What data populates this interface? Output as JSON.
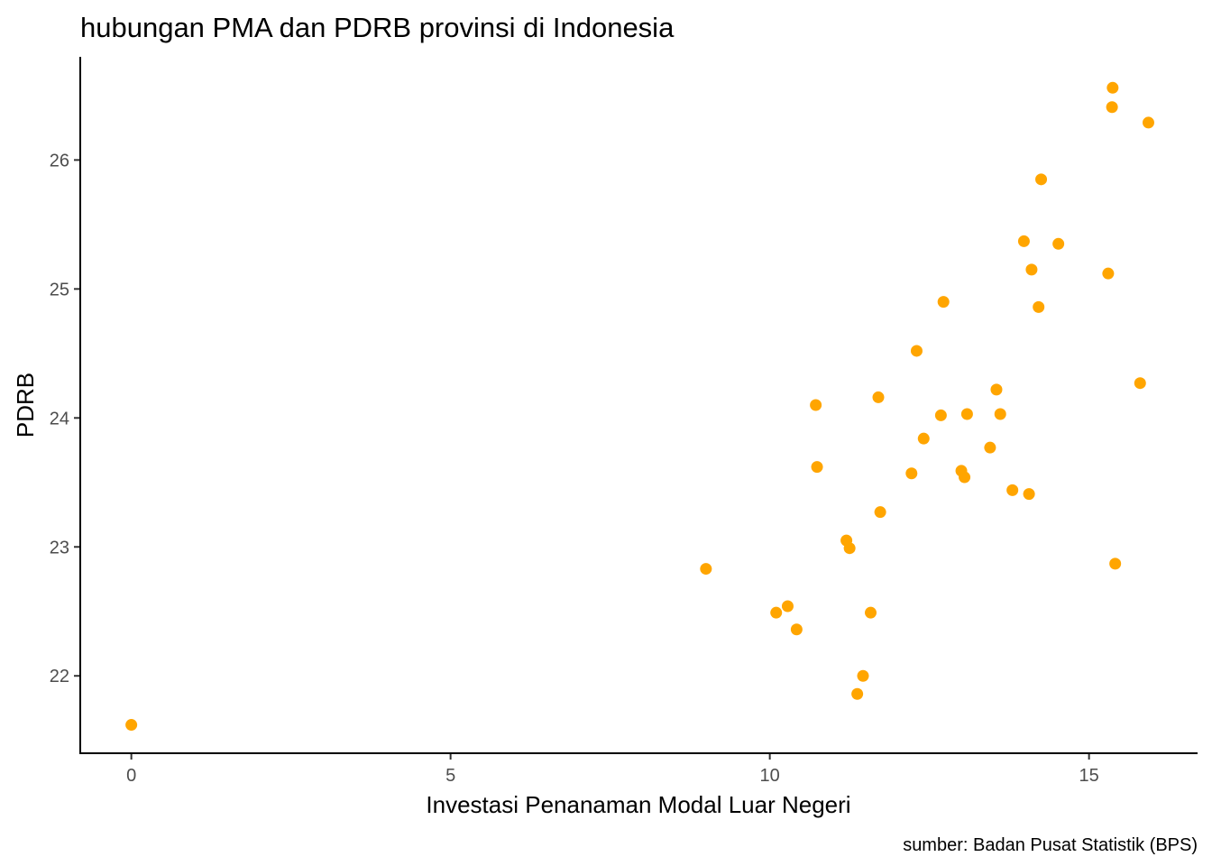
{
  "chart_data": {
    "type": "scatter",
    "title": "hubungan PMA dan PDRB provinsi di Indonesia",
    "xlabel": "Investasi Penanaman Modal Luar Negeri",
    "ylabel": "PDRB",
    "caption": "sumber: Badan Pusat Statistik (BPS)",
    "xlim": [
      -0.8,
      16.7
    ],
    "ylim": [
      21.4,
      26.8
    ],
    "xticks": [
      0,
      5,
      10,
      15
    ],
    "yticks": [
      22,
      23,
      24,
      25,
      26
    ],
    "grid": false,
    "point_color": "#FFA500",
    "points": [
      {
        "x": 0.0,
        "y": 21.62
      },
      {
        "x": 9.0,
        "y": 22.83
      },
      {
        "x": 10.1,
        "y": 22.49
      },
      {
        "x": 10.28,
        "y": 22.54
      },
      {
        "x": 10.42,
        "y": 22.36
      },
      {
        "x": 10.72,
        "y": 24.1
      },
      {
        "x": 10.74,
        "y": 23.62
      },
      {
        "x": 11.2,
        "y": 23.05
      },
      {
        "x": 11.25,
        "y": 22.99
      },
      {
        "x": 11.37,
        "y": 21.86
      },
      {
        "x": 11.46,
        "y": 22.0
      },
      {
        "x": 11.58,
        "y": 22.49
      },
      {
        "x": 11.7,
        "y": 24.16
      },
      {
        "x": 11.73,
        "y": 23.27
      },
      {
        "x": 12.22,
        "y": 23.57
      },
      {
        "x": 12.3,
        "y": 24.52
      },
      {
        "x": 12.41,
        "y": 23.84
      },
      {
        "x": 12.68,
        "y": 24.02
      },
      {
        "x": 12.72,
        "y": 24.9
      },
      {
        "x": 13.0,
        "y": 23.59
      },
      {
        "x": 13.05,
        "y": 23.54
      },
      {
        "x": 13.09,
        "y": 24.03
      },
      {
        "x": 13.45,
        "y": 23.77
      },
      {
        "x": 13.55,
        "y": 24.22
      },
      {
        "x": 13.61,
        "y": 24.03
      },
      {
        "x": 13.8,
        "y": 23.44
      },
      {
        "x": 13.98,
        "y": 25.37
      },
      {
        "x": 14.06,
        "y": 23.41
      },
      {
        "x": 14.1,
        "y": 25.15
      },
      {
        "x": 14.21,
        "y": 24.86
      },
      {
        "x": 14.25,
        "y": 25.85
      },
      {
        "x": 14.52,
        "y": 25.35
      },
      {
        "x": 15.3,
        "y": 25.12
      },
      {
        "x": 15.36,
        "y": 26.41
      },
      {
        "x": 15.37,
        "y": 26.56
      },
      {
        "x": 15.41,
        "y": 22.87
      },
      {
        "x": 15.8,
        "y": 24.27
      },
      {
        "x": 15.93,
        "y": 26.29
      }
    ]
  }
}
